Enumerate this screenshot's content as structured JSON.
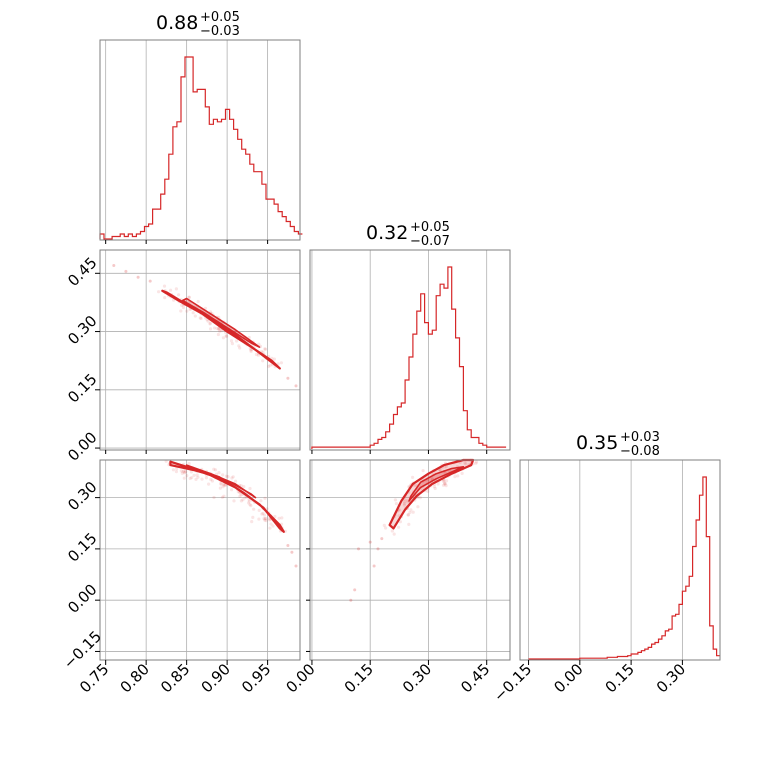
{
  "chart_data": {
    "type": "corner",
    "color": "#d62728",
    "grid": true,
    "params": [
      {
        "median": "0.88",
        "plus": "+0.05",
        "minus": "−0.03",
        "range": [
          0.743,
          0.99
        ],
        "ticks": [
          0.75,
          0.8,
          0.85,
          0.9,
          0.95
        ],
        "tick_labels": [
          "0.75",
          "0.80",
          "0.85",
          "0.90",
          "0.95"
        ]
      },
      {
        "median": "0.32",
        "plus": "+0.05",
        "minus": "−0.07",
        "range": [
          -0.005,
          0.51
        ],
        "ticks": [
          0.0,
          0.15,
          0.3,
          0.45
        ],
        "tick_labels": [
          "0.00",
          "0.15",
          "0.30",
          "0.45"
        ]
      },
      {
        "median": "0.35",
        "plus": "+0.03",
        "minus": "−0.08",
        "range": [
          -0.175,
          0.41
        ],
        "ticks": [
          -0.15,
          0.0,
          0.15,
          0.3
        ],
        "tick_labels": [
          "−0.15",
          "0.00",
          "0.15",
          "0.30"
        ]
      }
    ],
    "histograms": [
      {
        "param": 0,
        "edges": [
          0.743,
          0.748,
          0.753,
          0.758,
          0.763,
          0.768,
          0.773,
          0.778,
          0.783,
          0.788,
          0.793,
          0.798,
          0.803,
          0.808,
          0.813,
          0.818,
          0.823,
          0.828,
          0.833,
          0.838,
          0.843,
          0.848,
          0.853,
          0.858,
          0.863,
          0.868,
          0.873,
          0.878,
          0.883,
          0.888,
          0.893,
          0.898,
          0.903,
          0.908,
          0.913,
          0.918,
          0.923,
          0.928,
          0.933,
          0.938,
          0.943,
          0.948,
          0.953,
          0.958,
          0.963,
          0.968,
          0.973,
          0.978,
          0.983,
          0.988,
          0.993
        ],
        "counts": [
          2,
          0,
          0,
          1,
          1,
          2,
          1,
          2,
          1,
          2,
          3,
          5,
          6,
          12,
          12,
          18,
          24,
          34,
          45,
          47,
          65,
          73,
          73,
          59,
          60,
          60,
          53,
          46,
          48,
          47,
          48,
          52,
          48,
          44,
          40,
          36,
          34,
          30,
          27,
          27,
          22,
          16,
          16,
          14,
          11,
          9,
          7,
          5,
          3,
          2
        ]
      },
      {
        "param": 1,
        "edges": [
          0.0,
          0.01,
          0.02,
          0.03,
          0.04,
          0.05,
          0.06,
          0.07,
          0.08,
          0.09,
          0.1,
          0.11,
          0.12,
          0.13,
          0.14,
          0.15,
          0.16,
          0.17,
          0.18,
          0.19,
          0.2,
          0.21,
          0.22,
          0.23,
          0.24,
          0.25,
          0.26,
          0.27,
          0.28,
          0.29,
          0.3,
          0.31,
          0.32,
          0.33,
          0.34,
          0.35,
          0.36,
          0.37,
          0.38,
          0.39,
          0.4,
          0.41,
          0.42,
          0.43,
          0.44,
          0.45,
          0.46,
          0.47,
          0.48,
          0.49,
          0.5
        ],
        "counts": [
          1,
          1,
          1,
          1,
          1,
          1,
          1,
          1,
          1,
          1,
          1,
          1,
          1,
          1,
          1,
          2,
          3,
          5,
          6,
          9,
          13,
          18,
          22,
          24,
          36,
          48,
          60,
          72,
          81,
          66,
          60,
          62,
          80,
          86,
          84,
          95,
          73,
          58,
          43,
          20,
          10,
          6,
          6,
          3,
          2,
          1,
          1,
          1,
          1,
          1
        ]
      },
      {
        "param": 2,
        "edges": [
          -0.15,
          -0.14,
          -0.13,
          -0.12,
          -0.11,
          -0.1,
          -0.09,
          -0.08,
          -0.07,
          -0.06,
          -0.05,
          -0.04,
          -0.03,
          -0.02,
          -0.01,
          0.0,
          0.01,
          0.02,
          0.03,
          0.04,
          0.05,
          0.06,
          0.07,
          0.08,
          0.09,
          0.1,
          0.11,
          0.12,
          0.13,
          0.14,
          0.15,
          0.16,
          0.17,
          0.18,
          0.19,
          0.2,
          0.21,
          0.22,
          0.23,
          0.24,
          0.25,
          0.26,
          0.27,
          0.28,
          0.29,
          0.3,
          0.31,
          0.32,
          0.33,
          0.34,
          0.35,
          0.36,
          0.37,
          0.38,
          0.39,
          0.4,
          0.41
        ],
        "counts": [
          0,
          0,
          0,
          0,
          0,
          0,
          0,
          0,
          0,
          0,
          0,
          0,
          0,
          0,
          0,
          0.5,
          0.5,
          0.5,
          0.5,
          0.5,
          0.5,
          0.5,
          0.5,
          1,
          1,
          1,
          1.5,
          1.5,
          1.5,
          2,
          3,
          3,
          4,
          5,
          6,
          7,
          9,
          10,
          12,
          14,
          17,
          18,
          26,
          27,
          33,
          41,
          44,
          50,
          68,
          84,
          99,
          110,
          74,
          20,
          6,
          2
        ]
      }
    ],
    "scatter_panels": [
      {
        "x_param": 0,
        "y_param": 1,
        "contour_path": [
          [
            0.826,
            0.4
          ],
          [
            0.85,
            0.37
          ],
          [
            0.88,
            0.335
          ],
          [
            0.91,
            0.292
          ],
          [
            0.94,
            0.245
          ],
          [
            0.965,
            0.205
          ],
          [
            0.955,
            0.225
          ],
          [
            0.93,
            0.26
          ],
          [
            0.9,
            0.3
          ],
          [
            0.87,
            0.345
          ],
          [
            0.84,
            0.38
          ],
          [
            0.82,
            0.405
          ]
        ],
        "core_path": [
          [
            0.85,
            0.385
          ],
          [
            0.88,
            0.345
          ],
          [
            0.91,
            0.305
          ],
          [
            0.94,
            0.26
          ],
          [
            0.93,
            0.27
          ],
          [
            0.9,
            0.31
          ],
          [
            0.87,
            0.35
          ],
          [
            0.845,
            0.38
          ]
        ],
        "outer_samples": [
          [
            0.76,
            0.47
          ],
          [
            0.775,
            0.455
          ],
          [
            0.79,
            0.44
          ],
          [
            0.805,
            0.43
          ],
          [
            0.975,
            0.18
          ],
          [
            0.985,
            0.16
          ],
          [
            0.99,
            0.15
          ],
          [
            0.995,
            0.13
          ]
        ]
      },
      {
        "x_param": 0,
        "y_param": 2,
        "contour_path": [
          [
            0.83,
            0.395
          ],
          [
            0.86,
            0.38
          ],
          [
            0.89,
            0.36
          ],
          [
            0.92,
            0.315
          ],
          [
            0.945,
            0.27
          ],
          [
            0.965,
            0.21
          ],
          [
            0.97,
            0.2
          ],
          [
            0.965,
            0.22
          ],
          [
            0.94,
            0.28
          ],
          [
            0.91,
            0.33
          ],
          [
            0.88,
            0.365
          ],
          [
            0.85,
            0.39
          ],
          [
            0.83,
            0.405
          ]
        ],
        "core_path": [
          [
            0.85,
            0.395
          ],
          [
            0.88,
            0.37
          ],
          [
            0.91,
            0.34
          ],
          [
            0.935,
            0.3
          ],
          [
            0.93,
            0.31
          ],
          [
            0.9,
            0.35
          ],
          [
            0.87,
            0.375
          ],
          [
            0.85,
            0.39
          ]
        ],
        "outer_samples": [
          [
            0.775,
            0.43
          ],
          [
            0.79,
            0.42
          ],
          [
            0.81,
            0.415
          ],
          [
            0.975,
            0.16
          ],
          [
            0.98,
            0.14
          ],
          [
            0.985,
            0.1
          ],
          [
            0.99,
            0.05
          ],
          [
            0.995,
            0.02
          ]
        ]
      },
      {
        "x_param": 1,
        "y_param": 2,
        "contour_path": [
          [
            0.21,
            0.21
          ],
          [
            0.24,
            0.265
          ],
          [
            0.27,
            0.305
          ],
          [
            0.31,
            0.34
          ],
          [
            0.36,
            0.37
          ],
          [
            0.41,
            0.395
          ],
          [
            0.415,
            0.41
          ],
          [
            0.39,
            0.41
          ],
          [
            0.34,
            0.395
          ],
          [
            0.3,
            0.37
          ],
          [
            0.26,
            0.34
          ],
          [
            0.23,
            0.29
          ],
          [
            0.2,
            0.22
          ]
        ],
        "core_path": [
          [
            0.25,
            0.29
          ],
          [
            0.28,
            0.33
          ],
          [
            0.32,
            0.355
          ],
          [
            0.36,
            0.375
          ],
          [
            0.39,
            0.39
          ],
          [
            0.36,
            0.385
          ],
          [
            0.32,
            0.37
          ],
          [
            0.28,
            0.345
          ],
          [
            0.255,
            0.305
          ]
        ],
        "outer_samples": [
          [
            0.12,
            0.15
          ],
          [
            0.15,
            0.17
          ],
          [
            0.17,
            0.15
          ],
          [
            0.18,
            0.18
          ],
          [
            0.1,
            0.0
          ],
          [
            0.11,
            0.03
          ],
          [
            0.16,
            0.1
          ],
          [
            0.43,
            0.42
          ],
          [
            0.44,
            0.42
          ]
        ]
      }
    ]
  }
}
